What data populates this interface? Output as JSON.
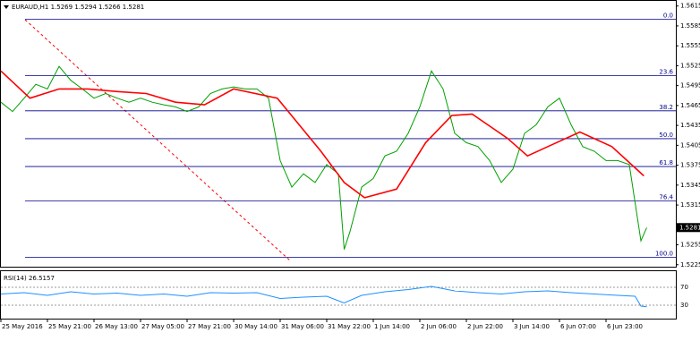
{
  "chart_data": {
    "type": "line",
    "title": "EURAUD,H1  1.5269 1.5294 1.5266 1.5281",
    "xlim": [
      0,
      232
    ],
    "xticks": [
      {
        "value": 0,
        "label": "25 May 2016"
      },
      {
        "value": 16,
        "label": "25 May 21:00"
      },
      {
        "value": 32,
        "label": "26 May 13:00"
      },
      {
        "value": 48,
        "label": "27 May 05:00"
      },
      {
        "value": 64,
        "label": "27 May 21:00"
      },
      {
        "value": 80,
        "label": "30 May 14:00"
      },
      {
        "value": 96,
        "label": "31 May 06:00"
      },
      {
        "value": 112,
        "label": "31 May 22:00"
      },
      {
        "value": 128,
        "label": "1 Jun 14:00"
      },
      {
        "value": 144,
        "label": "2 Jun 06:00"
      },
      {
        "value": 160,
        "label": "2 Jun 22:00"
      },
      {
        "value": 176,
        "label": "3 Jun 14:00"
      },
      {
        "value": 192,
        "label": "6 Jun 07:00"
      },
      {
        "value": 208,
        "label": "6 Jun 23:00"
      }
    ],
    "ylim": [
      1.5222,
      1.562
    ],
    "yticks": [
      1.5615,
      1.5585,
      1.5555,
      1.5525,
      1.5495,
      1.5465,
      1.5435,
      1.5405,
      1.5375,
      1.5345,
      1.5315,
      1.5255,
      1.5225
    ],
    "current_price": 1.5281,
    "fib_levels": [
      {
        "label": "0.0",
        "price": 1.5595
      },
      {
        "label": "23.6",
        "price": 1.551
      },
      {
        "label": "38.2",
        "price": 1.5457
      },
      {
        "label": "50.0",
        "price": 1.5415
      },
      {
        "label": "61.8",
        "price": 1.5373
      },
      {
        "label": "76.4",
        "price": 1.5321
      },
      {
        "label": "100.0",
        "price": 1.5236
      }
    ],
    "series": [
      {
        "color": "#00a000",
        "x": [
          0,
          4,
          8,
          12,
          16,
          20,
          24,
          28,
          32,
          36,
          40,
          44,
          48,
          52,
          56,
          60,
          64,
          68,
          72,
          76,
          80,
          84,
          88,
          92,
          96,
          100,
          104,
          108,
          112,
          116,
          118,
          120,
          124,
          128,
          132,
          136,
          140,
          144,
          148,
          152,
          156,
          160,
          164,
          168,
          172,
          176,
          180,
          184,
          188,
          192,
          196,
          200,
          204,
          208,
          212,
          216,
          220,
          222
        ],
        "values": [
          1.547,
          1.5456,
          1.5476,
          1.5497,
          1.549,
          1.5524,
          1.5503,
          1.549,
          1.5476,
          1.5483,
          1.5476,
          1.547,
          1.5476,
          1.547,
          1.5466,
          1.5463,
          1.5456,
          1.5463,
          1.5483,
          1.549,
          1.5493,
          1.549,
          1.549,
          1.5476,
          1.5382,
          1.5342,
          1.5362,
          1.5349,
          1.5376,
          1.5362,
          1.5248,
          1.5275,
          1.5342,
          1.5355,
          1.5389,
          1.5396,
          1.5423,
          1.5463,
          1.5517,
          1.549,
          1.5423,
          1.5409,
          1.5403,
          1.5382,
          1.5349,
          1.5369,
          1.5423,
          1.5436,
          1.5463,
          1.5476,
          1.5436,
          1.5403,
          1.5396,
          1.5382,
          1.5382,
          1.5376,
          1.5261,
          1.5281
        ]
      },
      {
        "color": "#ff0000",
        "x": [
          0,
          10,
          20,
          30,
          40,
          50,
          60,
          70,
          80,
          95,
          110,
          118,
          125,
          136,
          146,
          155,
          162,
          174,
          181,
          188,
          199,
          210,
          221
        ],
        "values": [
          1.5517,
          1.5476,
          1.549,
          1.549,
          1.5486,
          1.5483,
          1.547,
          1.5466,
          1.549,
          1.5476,
          1.5396,
          1.5349,
          1.5326,
          1.5339,
          1.5409,
          1.545,
          1.5452,
          1.5416,
          1.5389,
          1.5403,
          1.5425,
          1.5403,
          1.5359
        ]
      }
    ],
    "rsi": {
      "label": "RSI(14) 26.5157",
      "ylim": [
        0,
        100
      ],
      "yticks": [
        70,
        30
      ],
      "color": "#1e90ff",
      "x": [
        0,
        8,
        16,
        24,
        32,
        40,
        48,
        56,
        64,
        72,
        80,
        88,
        96,
        104,
        112,
        118,
        124,
        132,
        140,
        148,
        156,
        164,
        172,
        180,
        188,
        196,
        204,
        212,
        218,
        220,
        222
      ],
      "values": [
        55,
        58,
        52,
        60,
        55,
        57,
        52,
        55,
        50,
        58,
        57,
        58,
        45,
        48,
        50,
        35,
        52,
        60,
        65,
        72,
        62,
        58,
        55,
        60,
        62,
        58,
        55,
        52,
        50,
        28,
        26.5157
      ]
    }
  }
}
